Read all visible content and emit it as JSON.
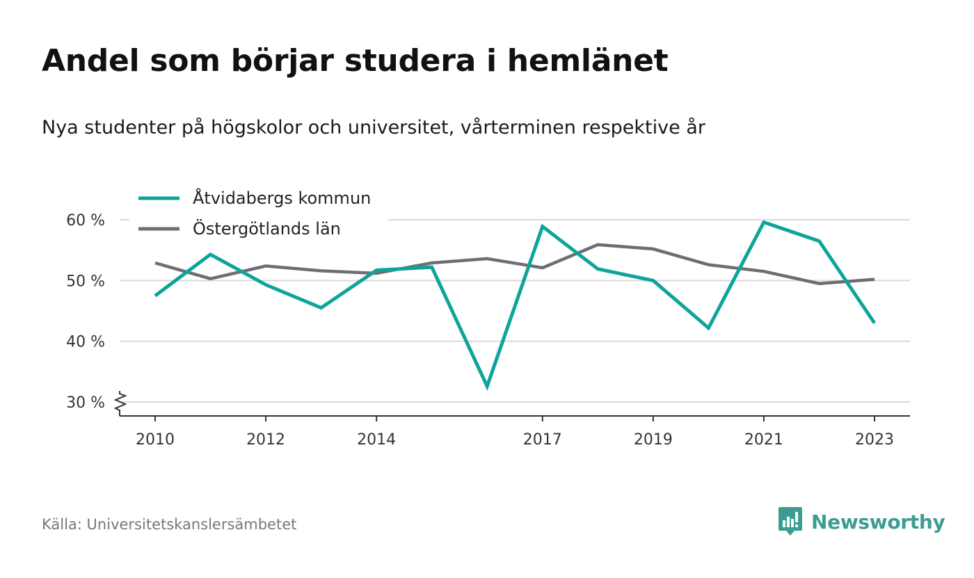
{
  "header": {
    "title": "Andel som börjar studera i hemlänet",
    "subtitle": "Nya studenter på högskolor och universitet, vårterminen respektive år"
  },
  "footer": {
    "source": "Källa: Universitetskanslersämbetet",
    "brand": "Newsworthy",
    "brand_icon": "chart-bubble-icon"
  },
  "colors": {
    "series_1": "#0ea49a",
    "series_2": "#6e6d75",
    "grid": "#d9d9d9",
    "axis": "#333333",
    "brand": "#3d9c92"
  },
  "chart_data": {
    "type": "line",
    "title": "Andel som börjar studera i hemlänet",
    "subtitle": "Nya studenter på högskolor och universitet, vårterminen respektive år",
    "xlabel": "",
    "ylabel": "",
    "x": [
      2010,
      2011,
      2012,
      2013,
      2014,
      2015,
      2016,
      2017,
      2018,
      2019,
      2020,
      2021,
      2022,
      2023
    ],
    "x_ticks": [
      2010,
      2012,
      2014,
      2017,
      2019,
      2021,
      2023
    ],
    "x_tick_labels": [
      "2010",
      "2012",
      "2014",
      "2017",
      "2019",
      "2021",
      "2023"
    ],
    "y_ticks": [
      30,
      40,
      50,
      60
    ],
    "y_tick_labels": [
      "30 %",
      "40 %",
      "50 %",
      "60 %"
    ],
    "ylim": [
      27.5,
      61.5
    ],
    "y_axis_break": true,
    "grid": "horizontal",
    "legend_position": "top-left",
    "series": [
      {
        "name": "Åtvidabergs kommun",
        "values": [
          47.5,
          54.3,
          49.3,
          45.5,
          51.7,
          52.2,
          32.6,
          58.9,
          51.9,
          50.0,
          42.2,
          59.6,
          56.5,
          43.0
        ]
      },
      {
        "name": "Östergötlands län",
        "values": [
          52.9,
          50.3,
          52.4,
          51.6,
          51.2,
          52.9,
          53.6,
          52.1,
          55.9,
          55.2,
          52.6,
          51.5,
          49.5,
          50.2
        ]
      }
    ]
  }
}
